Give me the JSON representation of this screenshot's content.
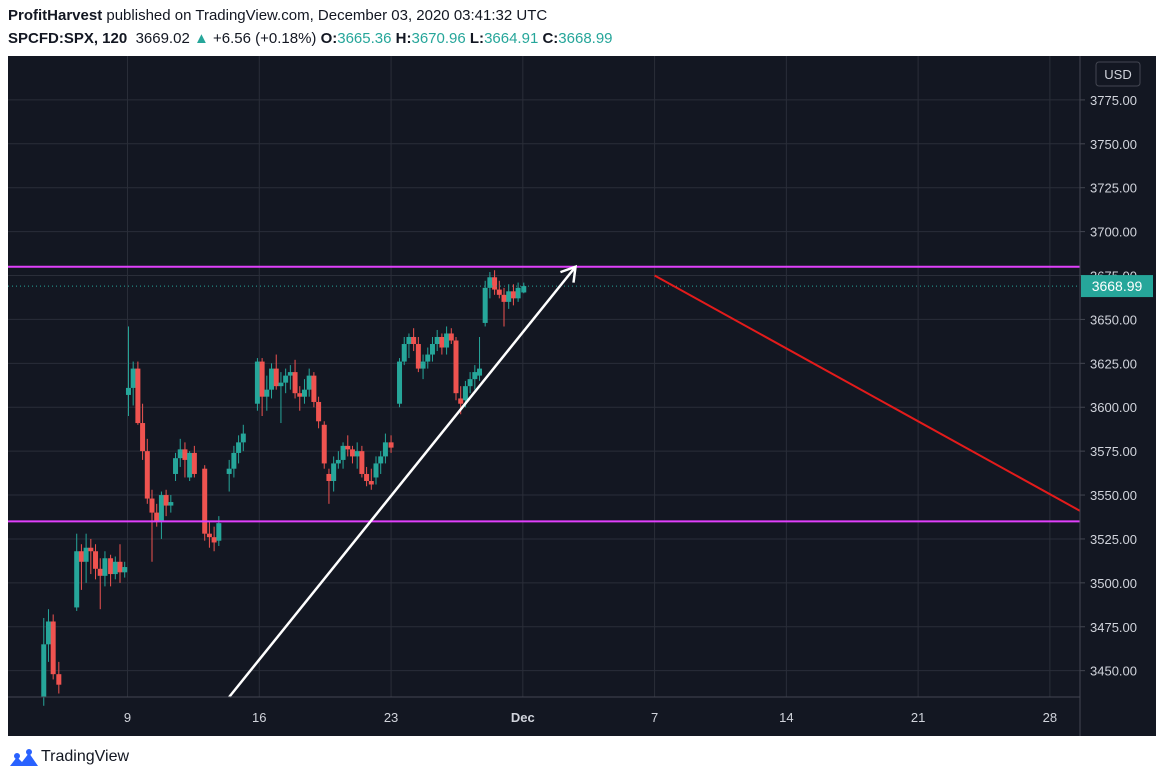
{
  "header": {
    "author": "ProfitHarvest",
    "published": "published on TradingView.com, December 03, 2020 03:41:32 UTC",
    "symbol": "SPCFD:SPX, 120",
    "last": "3669.02",
    "change_arrow": "▲",
    "change": "+6.56 (+0.18%)",
    "o_label": "O:",
    "o_value": "3665.36",
    "h_label": "H:",
    "h_value": "3670.96",
    "l_label": "L:",
    "l_value": "3664.91",
    "c_label": "C:",
    "c_value": "3668.99"
  },
  "footer": {
    "brand": "TradingView",
    "logo_icon": "tradingview-logo-icon"
  },
  "colors": {
    "background": "#131722",
    "grid": "#2a2e39",
    "up": "#26a69a",
    "down": "#ef5350",
    "level": "#e040fb",
    "arrow": "#ffffff",
    "projection": "#e31b1b",
    "axis_text": "#d1d4dc"
  },
  "chart_data": {
    "type": "candlestick",
    "currency": "USD",
    "last_price_label": "3668.99",
    "ylim": [
      3435,
      3800
    ],
    "y_ticks": [
      "3775.00",
      "3750.00",
      "3725.00",
      "3700.00",
      "3675.00",
      "3650.00",
      "3625.00",
      "3600.00",
      "3575.00",
      "3550.00",
      "3525.00",
      "3500.00",
      "3475.00",
      "3450.00"
    ],
    "y_tick_values": [
      3775,
      3750,
      3725,
      3700,
      3675,
      3650,
      3625,
      3600,
      3575,
      3550,
      3525,
      3500,
      3475,
      3450
    ],
    "x_ticks": [
      {
        "label": "9",
        "day": 9
      },
      {
        "label": "16",
        "day": 16
      },
      {
        "label": "23",
        "day": 23
      },
      {
        "label": "Dec",
        "day": 30
      },
      {
        "label": "7",
        "day": 37
      },
      {
        "label": "14",
        "day": 44
      },
      {
        "label": "21",
        "day": 51
      },
      {
        "label": "28",
        "day": 58
      }
    ],
    "x_range_days": [
      2.65,
      59.6
    ],
    "grid": true,
    "resistance_level": 3680,
    "support_level": 3535,
    "last_price": 3668.99,
    "arrow": {
      "from": [
        14.4,
        3435
      ],
      "to": [
        32.8,
        3680
      ]
    },
    "projection": {
      "from": [
        37.0,
        3675
      ],
      "to": [
        59.6,
        3541
      ]
    },
    "candles": [
      {
        "day": 4.55,
        "o": 3435,
        "h": 3480,
        "l": 3430,
        "c": 3465
      },
      {
        "day": 4.8,
        "o": 3465,
        "h": 3485,
        "l": 3455,
        "c": 3478
      },
      {
        "day": 5.05,
        "o": 3478,
        "h": 3482,
        "l": 3445,
        "c": 3448
      },
      {
        "day": 5.35,
        "o": 3448,
        "h": 3455,
        "l": 3437,
        "c": 3442
      },
      {
        "day": 6.3,
        "o": 3486,
        "h": 3528,
        "l": 3484,
        "c": 3518
      },
      {
        "day": 6.55,
        "o": 3518,
        "h": 3522,
        "l": 3496,
        "c": 3512
      },
      {
        "day": 6.8,
        "o": 3512,
        "h": 3528,
        "l": 3500,
        "c": 3520
      },
      {
        "day": 7.05,
        "o": 3520,
        "h": 3525,
        "l": 3505,
        "c": 3518
      },
      {
        "day": 7.3,
        "o": 3518,
        "h": 3522,
        "l": 3502,
        "c": 3508
      },
      {
        "day": 7.55,
        "o": 3508,
        "h": 3514,
        "l": 3485,
        "c": 3504
      },
      {
        "day": 7.8,
        "o": 3504,
        "h": 3518,
        "l": 3498,
        "c": 3514
      },
      {
        "day": 8.1,
        "o": 3514,
        "h": 3516,
        "l": 3498,
        "c": 3505
      },
      {
        "day": 8.35,
        "o": 3505,
        "h": 3515,
        "l": 3502,
        "c": 3512
      },
      {
        "day": 8.6,
        "o": 3512,
        "h": 3522,
        "l": 3500,
        "c": 3506
      },
      {
        "day": 8.85,
        "o": 3506,
        "h": 3512,
        "l": 3503,
        "c": 3509
      },
      {
        "day": 9.05,
        "o": 3607,
        "h": 3646,
        "l": 3595,
        "c": 3611
      },
      {
        "day": 9.3,
        "o": 3611,
        "h": 3626,
        "l": 3601,
        "c": 3622
      },
      {
        "day": 9.55,
        "o": 3622,
        "h": 3626,
        "l": 3590,
        "c": 3591
      },
      {
        "day": 9.8,
        "o": 3591,
        "h": 3602,
        "l": 3570,
        "c": 3575
      },
      {
        "day": 10.05,
        "o": 3575,
        "h": 3582,
        "l": 3545,
        "c": 3548
      },
      {
        "day": 10.3,
        "o": 3548,
        "h": 3553,
        "l": 3512,
        "c": 3540
      },
      {
        "day": 10.55,
        "o": 3540,
        "h": 3545,
        "l": 3532,
        "c": 3535
      },
      {
        "day": 10.8,
        "o": 3535,
        "h": 3552,
        "l": 3525,
        "c": 3550
      },
      {
        "day": 11.05,
        "o": 3550,
        "h": 3553,
        "l": 3538,
        "c": 3544
      },
      {
        "day": 11.3,
        "o": 3544,
        "h": 3550,
        "l": 3540,
        "c": 3546
      },
      {
        "day": 11.55,
        "o": 3562,
        "h": 3574,
        "l": 3558,
        "c": 3571
      },
      {
        "day": 11.8,
        "o": 3571,
        "h": 3582,
        "l": 3566,
        "c": 3576
      },
      {
        "day": 12.05,
        "o": 3576,
        "h": 3580,
        "l": 3560,
        "c": 3570
      },
      {
        "day": 12.3,
        "o": 3560,
        "h": 3575,
        "l": 3558,
        "c": 3574
      },
      {
        "day": 12.55,
        "o": 3574,
        "h": 3578,
        "l": 3560,
        "c": 3562
      },
      {
        "day": 13.1,
        "o": 3565,
        "h": 3567,
        "l": 3524,
        "c": 3528
      },
      {
        "day": 13.35,
        "o": 3528,
        "h": 3535,
        "l": 3520,
        "c": 3526
      },
      {
        "day": 13.6,
        "o": 3526,
        "h": 3532,
        "l": 3518,
        "c": 3523
      },
      {
        "day": 13.85,
        "o": 3524,
        "h": 3538,
        "l": 3521,
        "c": 3534
      },
      {
        "day": 14.4,
        "o": 3562,
        "h": 3570,
        "l": 3552,
        "c": 3565
      },
      {
        "day": 14.65,
        "o": 3565,
        "h": 3578,
        "l": 3560,
        "c": 3574
      },
      {
        "day": 14.9,
        "o": 3574,
        "h": 3584,
        "l": 3568,
        "c": 3580
      },
      {
        "day": 15.15,
        "o": 3580,
        "h": 3590,
        "l": 3575,
        "c": 3585
      },
      {
        "day": 15.9,
        "o": 3602,
        "h": 3628,
        "l": 3598,
        "c": 3626
      },
      {
        "day": 16.15,
        "o": 3626,
        "h": 3628,
        "l": 3595,
        "c": 3606
      },
      {
        "day": 16.4,
        "o": 3606,
        "h": 3618,
        "l": 3598,
        "c": 3610
      },
      {
        "day": 16.65,
        "o": 3610,
        "h": 3625,
        "l": 3605,
        "c": 3622
      },
      {
        "day": 16.9,
        "o": 3622,
        "h": 3630,
        "l": 3610,
        "c": 3612
      },
      {
        "day": 17.15,
        "o": 3612,
        "h": 3620,
        "l": 3591,
        "c": 3614
      },
      {
        "day": 17.4,
        "o": 3614,
        "h": 3622,
        "l": 3608,
        "c": 3618
      },
      {
        "day": 17.65,
        "o": 3618,
        "h": 3624,
        "l": 3610,
        "c": 3620
      },
      {
        "day": 17.9,
        "o": 3620,
        "h": 3627,
        "l": 3605,
        "c": 3608
      },
      {
        "day": 18.15,
        "o": 3608,
        "h": 3612,
        "l": 3598,
        "c": 3606
      },
      {
        "day": 18.4,
        "o": 3606,
        "h": 3616,
        "l": 3602,
        "c": 3610
      },
      {
        "day": 18.65,
        "o": 3610,
        "h": 3622,
        "l": 3606,
        "c": 3618
      },
      {
        "day": 18.9,
        "o": 3618,
        "h": 3620,
        "l": 3600,
        "c": 3603
      },
      {
        "day": 19.15,
        "o": 3603,
        "h": 3606,
        "l": 3588,
        "c": 3592
      },
      {
        "day": 19.45,
        "o": 3590,
        "h": 3592,
        "l": 3565,
        "c": 3568
      },
      {
        "day": 19.7,
        "o": 3562,
        "h": 3565,
        "l": 3545,
        "c": 3558
      },
      {
        "day": 19.95,
        "o": 3558,
        "h": 3572,
        "l": 3552,
        "c": 3568
      },
      {
        "day": 20.2,
        "o": 3568,
        "h": 3575,
        "l": 3565,
        "c": 3570
      },
      {
        "day": 20.45,
        "o": 3570,
        "h": 3580,
        "l": 3565,
        "c": 3578
      },
      {
        "day": 20.7,
        "o": 3578,
        "h": 3584,
        "l": 3572,
        "c": 3576
      },
      {
        "day": 20.95,
        "o": 3576,
        "h": 3578,
        "l": 3568,
        "c": 3572
      },
      {
        "day": 21.2,
        "o": 3572,
        "h": 3580,
        "l": 3565,
        "c": 3575
      },
      {
        "day": 21.45,
        "o": 3575,
        "h": 3578,
        "l": 3560,
        "c": 3562
      },
      {
        "day": 21.7,
        "o": 3562,
        "h": 3566,
        "l": 3555,
        "c": 3558
      },
      {
        "day": 21.95,
        "o": 3558,
        "h": 3565,
        "l": 3553,
        "c": 3556
      },
      {
        "day": 22.2,
        "o": 3560,
        "h": 3572,
        "l": 3556,
        "c": 3568
      },
      {
        "day": 22.45,
        "o": 3568,
        "h": 3575,
        "l": 3562,
        "c": 3572
      },
      {
        "day": 22.7,
        "o": 3572,
        "h": 3585,
        "l": 3568,
        "c": 3580
      },
      {
        "day": 23.0,
        "o": 3580,
        "h": 3584,
        "l": 3574,
        "c": 3577
      },
      {
        "day": 23.45,
        "o": 3602,
        "h": 3628,
        "l": 3600,
        "c": 3626
      },
      {
        "day": 23.7,
        "o": 3626,
        "h": 3640,
        "l": 3624,
        "c": 3636
      },
      {
        "day": 23.95,
        "o": 3636,
        "h": 3642,
        "l": 3628,
        "c": 3640
      },
      {
        "day": 24.2,
        "o": 3640,
        "h": 3645,
        "l": 3632,
        "c": 3636
      },
      {
        "day": 24.45,
        "o": 3636,
        "h": 3640,
        "l": 3620,
        "c": 3622
      },
      {
        "day": 24.7,
        "o": 3622,
        "h": 3630,
        "l": 3616,
        "c": 3626
      },
      {
        "day": 24.95,
        "o": 3626,
        "h": 3634,
        "l": 3622,
        "c": 3630
      },
      {
        "day": 25.2,
        "o": 3630,
        "h": 3640,
        "l": 3626,
        "c": 3636
      },
      {
        "day": 25.45,
        "o": 3636,
        "h": 3644,
        "l": 3632,
        "c": 3640
      },
      {
        "day": 25.7,
        "o": 3640,
        "h": 3642,
        "l": 3630,
        "c": 3634
      },
      {
        "day": 25.95,
        "o": 3634,
        "h": 3646,
        "l": 3630,
        "c": 3642
      },
      {
        "day": 26.2,
        "o": 3642,
        "h": 3645,
        "l": 3636,
        "c": 3638
      },
      {
        "day": 26.45,
        "o": 3638,
        "h": 3640,
        "l": 3604,
        "c": 3608
      },
      {
        "day": 26.7,
        "o": 3605,
        "h": 3612,
        "l": 3596,
        "c": 3602
      },
      {
        "day": 26.95,
        "o": 3604,
        "h": 3615,
        "l": 3600,
        "c": 3612
      },
      {
        "day": 27.2,
        "o": 3612,
        "h": 3620,
        "l": 3608,
        "c": 3616
      },
      {
        "day": 27.45,
        "o": 3616,
        "h": 3624,
        "l": 3610,
        "c": 3620
      },
      {
        "day": 27.7,
        "o": 3618,
        "h": 3640,
        "l": 3615,
        "c": 3622
      },
      {
        "day": 28.0,
        "o": 3648,
        "h": 3672,
        "l": 3646,
        "c": 3668
      },
      {
        "day": 28.25,
        "o": 3668,
        "h": 3677,
        "l": 3662,
        "c": 3674
      },
      {
        "day": 28.5,
        "o": 3674,
        "h": 3678,
        "l": 3664,
        "c": 3667
      },
      {
        "day": 28.75,
        "o": 3667,
        "h": 3672,
        "l": 3662,
        "c": 3664
      },
      {
        "day": 29.0,
        "o": 3664,
        "h": 3668,
        "l": 3646,
        "c": 3660
      },
      {
        "day": 29.25,
        "o": 3660,
        "h": 3670,
        "l": 3656,
        "c": 3666
      },
      {
        "day": 29.5,
        "o": 3666,
        "h": 3670,
        "l": 3658,
        "c": 3662
      },
      {
        "day": 29.75,
        "o": 3662,
        "h": 3671,
        "l": 3660,
        "c": 3668
      },
      {
        "day": 30.05,
        "o": 3665.36,
        "h": 3670.96,
        "l": 3664.91,
        "c": 3668.99
      }
    ]
  }
}
